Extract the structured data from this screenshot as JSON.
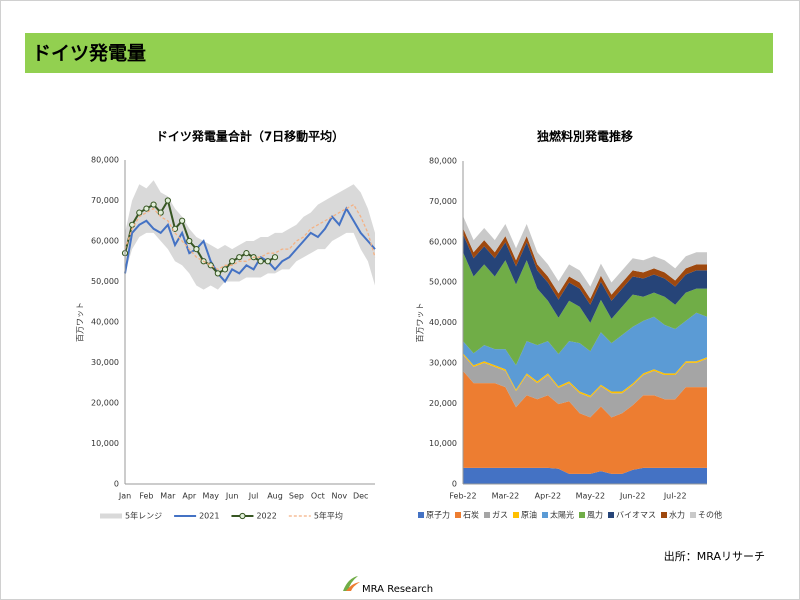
{
  "header": {
    "title": "ドイツ発電量"
  },
  "footer": {
    "source": "出所：MRAリサーチ",
    "logo": "MRA Research"
  },
  "chart_data": [
    {
      "type": "line",
      "title": "ドイツ発電量合計（7日移動平均）",
      "y_label": "百万ワット",
      "categories": [
        "Jan",
        null,
        null,
        "Feb",
        null,
        null,
        "Mar",
        null,
        null,
        "Apr",
        null,
        null,
        "May",
        null,
        null,
        "Jun",
        null,
        null,
        "Jul",
        null,
        null,
        "Aug",
        null,
        null,
        "Sep",
        null,
        null,
        "Oct",
        null,
        null,
        "Nov",
        null,
        null,
        "Dec",
        null,
        null
      ],
      "ylim": [
        0,
        80000
      ],
      "yticks": [
        {
          "value": 0,
          "label": "0"
        },
        {
          "value": 10000,
          "label": "10,000"
        },
        {
          "value": 20000,
          "label": "20,000"
        },
        {
          "value": 30000,
          "label": "30,000"
        },
        {
          "value": 40000,
          "label": "40,000"
        },
        {
          "value": 50000,
          "label": "50,000"
        },
        {
          "value": 60000,
          "label": "60,000"
        },
        {
          "value": 70000,
          "label": "70,000"
        },
        {
          "value": 80000,
          "label": "80,000"
        }
      ],
      "grid": false,
      "series": [
        {
          "name": "5年レンジ",
          "color": "#d9d9d9",
          "low": [
            52000,
            58000,
            61000,
            62000,
            62000,
            60000,
            58000,
            55000,
            54000,
            52000,
            49000,
            48000,
            49000,
            48000,
            50000,
            50000,
            50000,
            51000,
            51000,
            51000,
            52000,
            52000,
            53000,
            53000,
            55000,
            56000,
            57000,
            58000,
            58000,
            60000,
            61000,
            62000,
            62000,
            58000,
            55000,
            49000
          ],
          "high": [
            62000,
            70000,
            74000,
            73000,
            75000,
            72000,
            71000,
            68000,
            66000,
            63000,
            61000,
            60000,
            59000,
            58000,
            59000,
            58000,
            59000,
            60000,
            60000,
            61000,
            61000,
            62000,
            62000,
            63000,
            64000,
            66000,
            67000,
            69000,
            70000,
            71000,
            72000,
            73000,
            74000,
            72000,
            68000,
            62000
          ]
        },
        {
          "name": "2021",
          "color": "#4472c4",
          "style": "solid",
          "values": [
            52000,
            62000,
            64000,
            65000,
            63000,
            62000,
            64000,
            59000,
            62000,
            57000,
            58000,
            60000,
            55000,
            52000,
            50000,
            53000,
            52000,
            54000,
            53000,
            56000,
            55000,
            53000,
            55000,
            56000,
            58000,
            60000,
            62000,
            61000,
            63000,
            66000,
            64000,
            68000,
            65000,
            62000,
            60000,
            58000
          ]
        },
        {
          "name": "2022",
          "color": "#375623",
          "style": "solid",
          "markers": true,
          "marker_fill": "#e2efda",
          "values": [
            57000,
            64000,
            67000,
            68000,
            69000,
            67000,
            70000,
            63000,
            65000,
            60000,
            58000,
            55000,
            54000,
            52000,
            53000,
            55000,
            56000,
            57000,
            56000,
            55000,
            55000,
            56000,
            null,
            null,
            null,
            null,
            null,
            null,
            null,
            null,
            null,
            null,
            null,
            null,
            null,
            null
          ]
        },
        {
          "name": "5年平均",
          "color": "#f4b183",
          "style": "dashed",
          "values": [
            58000,
            63000,
            66000,
            67000,
            68000,
            66000,
            65000,
            62000,
            60000,
            58000,
            56000,
            55000,
            54000,
            53000,
            54000,
            54000,
            55000,
            55000,
            56000,
            56000,
            57000,
            57000,
            58000,
            58000,
            60000,
            61000,
            63000,
            64000,
            65000,
            66000,
            67000,
            68000,
            69000,
            66000,
            62000,
            56000
          ]
        }
      ]
    },
    {
      "type": "area",
      "stacked": true,
      "title": "独燃料別発電推移",
      "y_label": "百万ワット",
      "categories": [
        "Feb-22",
        null,
        null,
        null,
        "Mar-22",
        null,
        null,
        null,
        "Apr-22",
        null,
        null,
        null,
        "May-22",
        null,
        null,
        null,
        "Jun-22",
        null,
        null,
        null,
        "Jul-22",
        null,
        null,
        null
      ],
      "ylim": [
        0,
        80000
      ],
      "yticks": [
        {
          "value": 0,
          "label": "0"
        },
        {
          "value": 10000,
          "label": "10,000"
        },
        {
          "value": 20000,
          "label": "20,000"
        },
        {
          "value": 30000,
          "label": "30,000"
        },
        {
          "value": 40000,
          "label": "40,000"
        },
        {
          "value": 50000,
          "label": "50,000"
        },
        {
          "value": 60000,
          "label": "60,000"
        },
        {
          "value": 70000,
          "label": "70,000"
        },
        {
          "value": 80000,
          "label": "80,000"
        }
      ],
      "grid": false,
      "series": [
        {
          "name": "原子力",
          "color": "#4472c4",
          "values": [
            4000,
            4000,
            4000,
            4000,
            4000,
            4000,
            4000,
            4000,
            4000,
            3800,
            2500,
            2500,
            2500,
            3200,
            2500,
            2500,
            3500,
            4000,
            4000,
            4000,
            4000,
            4000,
            4000,
            4000
          ]
        },
        {
          "name": "石炭",
          "color": "#ed7d31",
          "values": [
            24000,
            21000,
            21000,
            21000,
            20000,
            15000,
            18000,
            17000,
            18000,
            16000,
            18000,
            15000,
            14000,
            16000,
            14000,
            15000,
            16000,
            18000,
            18000,
            17000,
            17000,
            20000,
            20000,
            20000
          ]
        },
        {
          "name": "ガス",
          "color": "#a5a5a5",
          "values": [
            4000,
            4000,
            5000,
            4000,
            4000,
            4000,
            5000,
            4000,
            5000,
            4000,
            4500,
            5000,
            5000,
            5000,
            6000,
            5000,
            5000,
            5000,
            6000,
            6000,
            6000,
            6000,
            6000,
            7000
          ]
        },
        {
          "name": "原油",
          "color": "#ffc000",
          "values": [
            400,
            400,
            400,
            400,
            400,
            400,
            400,
            400,
            400,
            400,
            400,
            400,
            400,
            400,
            400,
            400,
            400,
            400,
            400,
            400,
            400,
            400,
            400,
            400
          ]
        },
        {
          "name": "太陽光",
          "color": "#5b9bd5",
          "values": [
            3000,
            3000,
            4000,
            4000,
            5000,
            6000,
            8000,
            9000,
            8000,
            8000,
            10000,
            12000,
            11000,
            13000,
            12000,
            14000,
            14000,
            13000,
            13000,
            12000,
            11000,
            10000,
            12000,
            10000
          ]
        },
        {
          "name": "風力",
          "color": "#70ad47",
          "values": [
            22000,
            19000,
            20000,
            18000,
            22000,
            20000,
            20000,
            14000,
            10000,
            9000,
            10000,
            9000,
            7000,
            8000,
            6000,
            7000,
            8000,
            6000,
            6000,
            7000,
            6000,
            7000,
            6000,
            7000
          ]
        },
        {
          "name": "バイオマス",
          "color": "#264478",
          "values": [
            4500,
            4500,
            4500,
            4500,
            4500,
            4500,
            4500,
            4500,
            4500,
            4500,
            4500,
            4500,
            4500,
            4500,
            4500,
            4500,
            4500,
            4500,
            4500,
            4500,
            4500,
            4500,
            4500,
            4500
          ]
        },
        {
          "name": "水力",
          "color": "#9e480e",
          "values": [
            1500,
            1500,
            1500,
            1500,
            1500,
            1500,
            1500,
            1500,
            1500,
            1500,
            1500,
            1500,
            1500,
            1500,
            1500,
            1500,
            1500,
            1500,
            1500,
            1500,
            1500,
            1500,
            1500,
            1500
          ]
        },
        {
          "name": "その他",
          "color": "#c9c9c9",
          "values": [
            3000,
            3000,
            3000,
            3000,
            3000,
            3000,
            3000,
            3000,
            3000,
            3000,
            3000,
            3000,
            3000,
            3000,
            3000,
            3000,
            3000,
            3000,
            3000,
            3000,
            3000,
            3000,
            3000,
            3000
          ]
        }
      ]
    }
  ]
}
